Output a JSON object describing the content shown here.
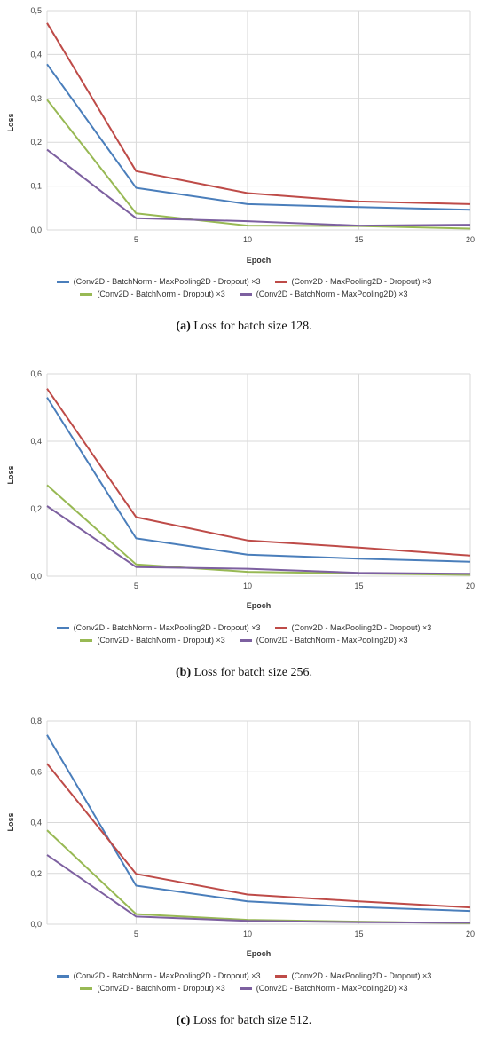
{
  "panels": [
    {
      "caption_label": "(a)",
      "caption_text": "Loss for batch size 128.",
      "legend": [
        "(Conv2D - BatchNorm - MaxPooling2D - Dropout) ×3",
        "(Conv2D - MaxPooling2D - Dropout) ×3",
        "(Conv2D - BatchNorm - Dropout) ×3",
        "(Conv2D - BatchNorm - MaxPooling2D) ×3"
      ]
    },
    {
      "caption_label": "(b)",
      "caption_text": "Loss for batch size 256.",
      "legend": [
        "(Conv2D - BatchNorm - MaxPooling2D - Dropout) ×3",
        "(Conv2D - MaxPooling2D - Dropout) ×3",
        "(Conv2D - BatchNorm - Dropout) ×3",
        "(Conv2D - BatchNorm - MaxPooling2D) ×3"
      ]
    },
    {
      "caption_label": "(c)",
      "caption_text": "Loss for batch size 512.",
      "legend": [
        "(Conv2D - BatchNorm - MaxPooling2D - Dropout) ×3",
        "(Conv2D - MaxPooling2D - Dropout) ×3",
        "(Conv2D - BatchNorm - Dropout) ×3",
        "(Conv2D - BatchNorm - MaxPooling2D) ×3"
      ]
    }
  ],
  "chart_data": [
    {
      "type": "line",
      "xlabel": "Epoch",
      "ylabel": "Loss",
      "xlim": [
        1,
        20
      ],
      "xticks": [
        5,
        10,
        15,
        20
      ],
      "ylim": [
        0,
        0.5
      ],
      "yticks": [
        "0,0",
        "0,1",
        "0,2",
        "0,3",
        "0,4",
        "0,5"
      ],
      "grid": true,
      "legend_position": "bottom",
      "x": [
        1,
        5,
        10,
        15,
        20
      ],
      "series": [
        {
          "name": "(Conv2D - BatchNorm - MaxPooling2D - Dropout) ×3",
          "color": "#4a7ebb",
          "values": [
            0.378,
            0.096,
            0.059,
            0.052,
            0.046
          ]
        },
        {
          "name": "(Conv2D - MaxPooling2D - Dropout) ×3",
          "color": "#be4b48",
          "values": [
            0.472,
            0.134,
            0.084,
            0.065,
            0.059
          ]
        },
        {
          "name": "(Conv2D - BatchNorm - Dropout) ×3",
          "color": "#98b954",
          "values": [
            0.297,
            0.038,
            0.01,
            0.009,
            0.003
          ]
        },
        {
          "name": "(Conv2D - BatchNorm - MaxPooling2D) ×3",
          "color": "#7d60a0",
          "values": [
            0.183,
            0.027,
            0.02,
            0.01,
            0.012
          ]
        }
      ]
    },
    {
      "type": "line",
      "xlabel": "Epoch",
      "ylabel": "Loss",
      "xlim": [
        1,
        20
      ],
      "xticks": [
        5,
        10,
        15,
        20
      ],
      "ylim": [
        0,
        0.6
      ],
      "yticks": [
        "0,0",
        "0,2",
        "0,4",
        "0,6"
      ],
      "grid": true,
      "legend_position": "bottom",
      "x": [
        1,
        5,
        10,
        15,
        20
      ],
      "series": [
        {
          "name": "(Conv2D - BatchNorm - MaxPooling2D - Dropout) ×3",
          "color": "#4a7ebb",
          "values": [
            0.53,
            0.112,
            0.064,
            0.052,
            0.043
          ]
        },
        {
          "name": "(Conv2D - MaxPooling2D - Dropout) ×3",
          "color": "#be4b48",
          "values": [
            0.556,
            0.175,
            0.106,
            0.085,
            0.061
          ]
        },
        {
          "name": "(Conv2D - BatchNorm - Dropout) ×3",
          "color": "#98b954",
          "values": [
            0.27,
            0.035,
            0.013,
            0.008,
            0.004
          ]
        },
        {
          "name": "(Conv2D - BatchNorm - MaxPooling2D) ×3",
          "color": "#7d60a0",
          "values": [
            0.208,
            0.027,
            0.022,
            0.01,
            0.007
          ]
        }
      ]
    },
    {
      "type": "line",
      "xlabel": "Epoch",
      "ylabel": "Loss",
      "xlim": [
        1,
        20
      ],
      "xticks": [
        5,
        10,
        15,
        20
      ],
      "ylim": [
        0,
        0.8
      ],
      "yticks": [
        "0,0",
        "0,2",
        "0,4",
        "0,6",
        "0,8"
      ],
      "grid": true,
      "legend_position": "bottom",
      "x": [
        1,
        5,
        10,
        15,
        20
      ],
      "series": [
        {
          "name": "(Conv2D - BatchNorm - MaxPooling2D - Dropout) ×3",
          "color": "#4a7ebb",
          "values": [
            0.745,
            0.152,
            0.09,
            0.067,
            0.052
          ]
        },
        {
          "name": "(Conv2D - MaxPooling2D - Dropout) ×3",
          "color": "#be4b48",
          "values": [
            0.632,
            0.198,
            0.117,
            0.09,
            0.066
          ]
        },
        {
          "name": "(Conv2D - BatchNorm - Dropout) ×3",
          "color": "#98b954",
          "values": [
            0.37,
            0.04,
            0.017,
            0.01,
            0.004
          ]
        },
        {
          "name": "(Conv2D - BatchNorm - MaxPooling2D) ×3",
          "color": "#7d60a0",
          "values": [
            0.273,
            0.03,
            0.013,
            0.008,
            0.006
          ]
        }
      ]
    }
  ]
}
